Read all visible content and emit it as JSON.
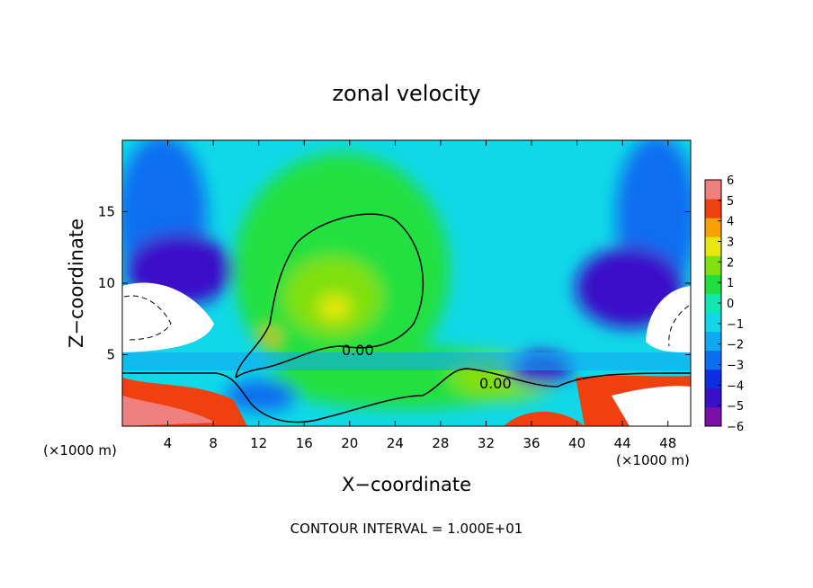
{
  "chart_data": {
    "type": "heatmap",
    "title": "zonal velocity",
    "xlabel": "X−coordinate",
    "ylabel": "Z−coordinate",
    "x_unit_left": "(×1000 m)",
    "x_unit_right": "(×1000 m)",
    "xlim": [
      0,
      50
    ],
    "ylim": [
      0,
      20
    ],
    "x_ticks": [
      4,
      8,
      12,
      16,
      20,
      24,
      28,
      32,
      36,
      40,
      44,
      48
    ],
    "x_tick_labels": [
      "4",
      "8",
      "12",
      "16",
      "20",
      "24",
      "28",
      "32",
      "36",
      "40",
      "44",
      "48"
    ],
    "y_ticks": [
      5,
      10,
      15
    ],
    "y_tick_labels": [
      "5",
      "10",
      "15"
    ],
    "colorbar": {
      "min": -6,
      "max": 6,
      "tick_values": [
        6,
        5,
        4,
        3,
        2,
        1,
        0,
        -1,
        -2,
        -3,
        -4,
        -5,
        -6
      ],
      "tick_labels": [
        "6",
        "5",
        "4",
        "3",
        "2",
        "1",
        "0",
        "−1",
        "−2",
        "−3",
        "−4",
        "−5",
        "−6"
      ]
    },
    "contour_labels": [
      "0.00",
      "0.00"
    ],
    "footer": "CONTOUR INTERVAL = 1.000E+01"
  },
  "colors": {
    "scale": [
      "#7a10a8",
      "#3a0fc8",
      "#0a2ee0",
      "#0a6ef0",
      "#10a8f0",
      "#10d8e8",
      "#10e8b0",
      "#20e040",
      "#80e010",
      "#e8e810",
      "#f8a000",
      "#f04010",
      "#f08080"
    ]
  }
}
